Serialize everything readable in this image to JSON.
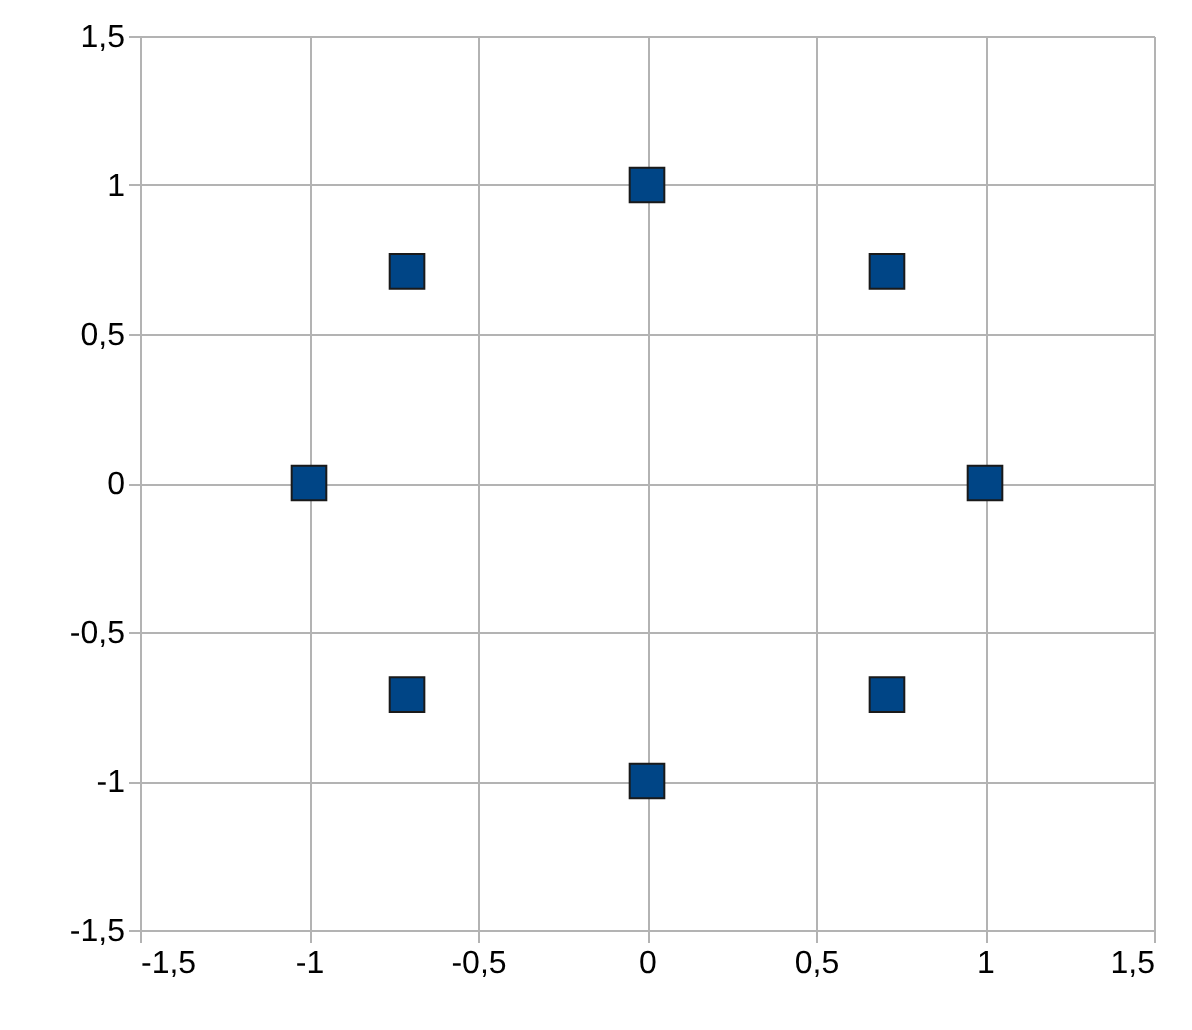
{
  "chart_data": {
    "type": "scatter",
    "x": [
      0,
      0.71,
      1,
      0.71,
      0,
      -0.71,
      -1,
      -0.71
    ],
    "series": [
      {
        "color": "#004586",
        "values": [
          1,
          0.71,
          0,
          -0.71,
          -1,
          -0.71,
          0,
          0.71
        ]
      }
    ],
    "xlim": [
      -1.5,
      1.5
    ],
    "ylim": [
      -1.5,
      1.5
    ],
    "xticks": [
      {
        "value": -1.5,
        "label": "-1,5"
      },
      {
        "value": -1,
        "label": "-1"
      },
      {
        "value": -0.5,
        "label": "-0,5"
      },
      0,
      {
        "value": 0.5,
        "label": "0,5"
      },
      1,
      {
        "value": 1.5,
        "label": "1,5"
      }
    ],
    "yticks": [
      {
        "value": -1.5,
        "label": "-1,5"
      },
      {
        "value": -1,
        "label": "-1"
      },
      {
        "value": -0.5,
        "label": "-0,5"
      },
      0,
      {
        "value": 0.5,
        "label": "0,5"
      },
      1,
      {
        "value": 1.5,
        "label": "1,5"
      }
    ],
    "grid": true,
    "legend": false,
    "marker": "square"
  }
}
